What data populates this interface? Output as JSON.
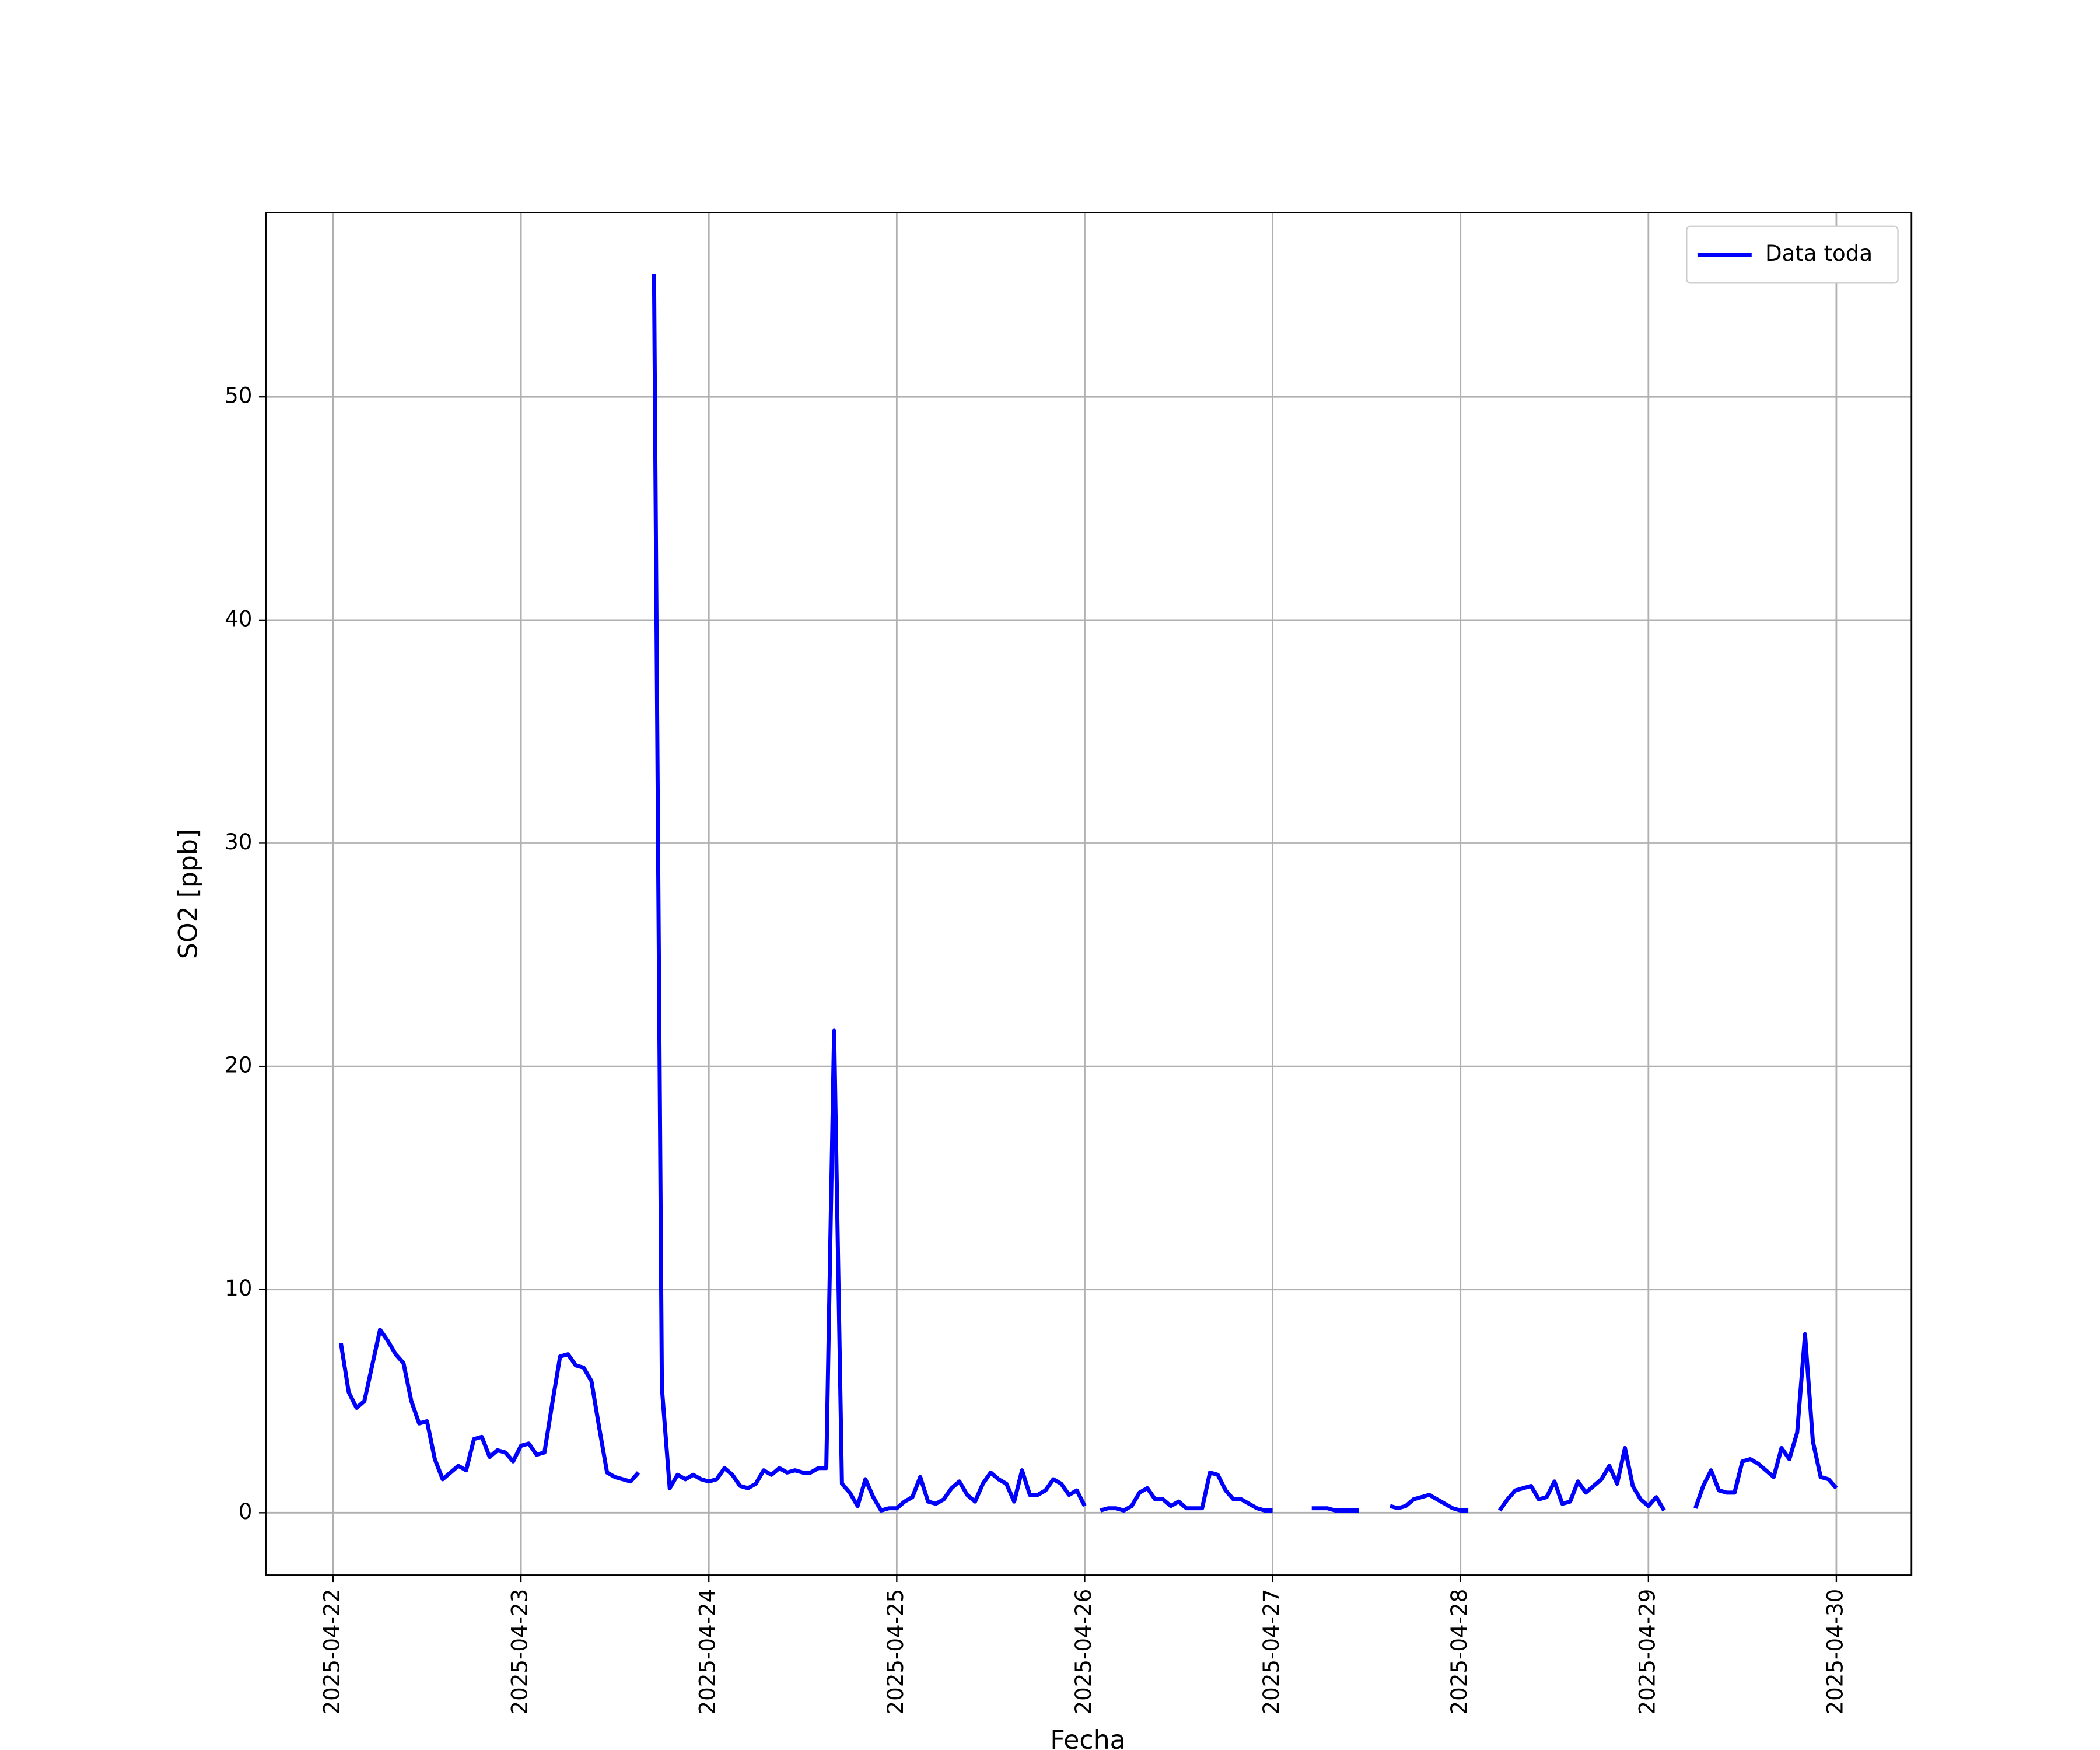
{
  "chart_data": {
    "type": "line",
    "x_label": "Fecha",
    "y_label": "SO2 [ppb]",
    "x": [
      1,
      2,
      3,
      4,
      5,
      6,
      7,
      8,
      9,
      10,
      11,
      12,
      13,
      14,
      15,
      16,
      17,
      18,
      19,
      20,
      21,
      22,
      23,
      24,
      25,
      26,
      27,
      28,
      29,
      30,
      31,
      32,
      33,
      34,
      35,
      36,
      37,
      38,
      39,
      40,
      41,
      42,
      43,
      44,
      45,
      46,
      47,
      48,
      49,
      50,
      51,
      52,
      53,
      54,
      55,
      56,
      57,
      58,
      59,
      60,
      61,
      62,
      63,
      64,
      65,
      66,
      67,
      68,
      69,
      70,
      71,
      72,
      73,
      74,
      75,
      76,
      77,
      78,
      79,
      80,
      81,
      82,
      83,
      84,
      85,
      86,
      87,
      88,
      89,
      90,
      91,
      92,
      93,
      94,
      95,
      96,
      97,
      98,
      99,
      100,
      101,
      102,
      103,
      104,
      105,
      106,
      107,
      108,
      109,
      110,
      111,
      112,
      113,
      114,
      115,
      116,
      117,
      118,
      119,
      120,
      121,
      122,
      123,
      124,
      125,
      126,
      127,
      128,
      129,
      130,
      131,
      132,
      133,
      134,
      135,
      136,
      137,
      138,
      139,
      140,
      141,
      142,
      143,
      144,
      145,
      146,
      147,
      148,
      149,
      150,
      151,
      152,
      153,
      154,
      155,
      156,
      157,
      158,
      159,
      160,
      161,
      162,
      163,
      164,
      165,
      166,
      167,
      168,
      169,
      170,
      171,
      172,
      173,
      174,
      175,
      176,
      177,
      178,
      179,
      180,
      181,
      182,
      183,
      184,
      185,
      186,
      187,
      188,
      189,
      190,
      191,
      192
    ],
    "series": [
      {
        "name": "Data toda",
        "color": "#0000ff",
        "values": [
          7.6,
          5.4,
          4.7,
          5.0,
          6.6,
          8.2,
          7.7,
          7.1,
          6.7,
          5.0,
          4.0,
          4.1,
          2.4,
          1.5,
          1.8,
          2.1,
          1.9,
          3.3,
          3.4,
          2.5,
          2.8,
          2.7,
          2.3,
          3.0,
          3.1,
          2.6,
          2.7,
          4.9,
          7.0,
          7.1,
          6.6,
          6.5,
          5.9,
          3.8,
          1.8,
          1.6,
          1.5,
          1.4,
          1.8,
          null,
          55.5,
          5.6,
          1.1,
          1.7,
          1.5,
          1.7,
          1.5,
          1.4,
          1.5,
          2.0,
          1.7,
          1.2,
          1.1,
          1.3,
          1.9,
          1.7,
          2.0,
          1.8,
          1.9,
          1.8,
          1.8,
          2.0,
          2.0,
          21.6,
          1.3,
          0.9,
          0.3,
          1.5,
          0.7,
          0.1,
          0.2,
          0.2,
          0.5,
          0.7,
          1.6,
          0.5,
          0.4,
          0.6,
          1.1,
          1.4,
          0.8,
          0.5,
          1.3,
          1.8,
          1.5,
          1.3,
          0.5,
          1.9,
          0.8,
          0.8,
          1.0,
          1.5,
          1.3,
          0.8,
          1.0,
          0.3,
          null,
          0.1,
          0.2,
          0.2,
          0.1,
          0.3,
          0.9,
          1.1,
          0.6,
          0.6,
          0.3,
          0.5,
          0.2,
          0.2,
          0.2,
          1.8,
          1.7,
          1.0,
          0.6,
          0.6,
          0.4,
          0.2,
          0.1,
          0.1,
          null,
          null,
          null,
          null,
          0.2,
          0.2,
          0.2,
          0.1,
          0.1,
          0.1,
          0.1,
          null,
          null,
          null,
          0.3,
          0.2,
          0.3,
          0.6,
          0.7,
          0.8,
          0.6,
          0.4,
          0.2,
          0.1,
          0.1,
          null,
          null,
          null,
          0.1,
          0.6,
          1.0,
          1.1,
          1.2,
          0.6,
          0.7,
          1.4,
          0.4,
          0.5,
          1.4,
          0.9,
          1.2,
          1.5,
          2.1,
          1.3,
          2.9,
          1.2,
          0.6,
          0.3,
          0.7,
          0.1,
          null,
          null,
          null,
          0.2,
          1.2,
          1.9,
          1.0,
          0.9,
          0.9,
          2.3,
          2.4,
          2.2,
          1.9,
          1.6,
          2.9,
          2.4,
          3.6,
          8.0,
          3.2,
          1.6,
          1.5,
          1.1
        ]
      }
    ],
    "xlim": [
      -8.6,
      201.6
    ],
    "xticks": [
      {
        "value": 0,
        "label": "2025-04-22"
      },
      {
        "value": 24,
        "label": "2025-04-23"
      },
      {
        "value": 48,
        "label": "2025-04-24"
      },
      {
        "value": 72,
        "label": "2025-04-25"
      },
      {
        "value": 96,
        "label": "2025-04-26"
      },
      {
        "value": 120,
        "label": "2025-04-27"
      },
      {
        "value": 144,
        "label": "2025-04-28"
      },
      {
        "value": 168,
        "label": "2025-04-29"
      },
      {
        "value": 192,
        "label": "2025-04-30"
      }
    ],
    "ylim": [
      -2.8,
      58.25
    ],
    "yticks": [
      0,
      10,
      20,
      30,
      40,
      50
    ],
    "grid": true,
    "legend": "upper right"
  }
}
